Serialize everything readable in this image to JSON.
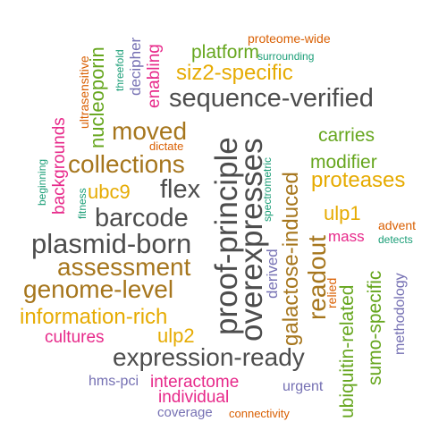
{
  "cloud": {
    "words": [
      {
        "text": "sequence-verified",
        "color": "#4d4d4d",
        "vertical": false
      },
      {
        "text": "proof-principle",
        "color": "#4d4d4d",
        "vertical": true
      },
      {
        "text": "overexpresses",
        "color": "#4d4d4d",
        "vertical": true
      },
      {
        "text": "expression-ready",
        "color": "#4d4d4d",
        "vertical": false
      },
      {
        "text": "plasmid-born",
        "color": "#4d4d4d",
        "vertical": false
      },
      {
        "text": "barcode",
        "color": "#4d4d4d",
        "vertical": false
      },
      {
        "text": "flex",
        "color": "#4d4d4d",
        "vertical": false
      },
      {
        "text": "readout",
        "color": "#a6761d",
        "vertical": true
      },
      {
        "text": "galactose-induced",
        "color": "#a6761d",
        "vertical": true
      },
      {
        "text": "collections",
        "color": "#a6761d",
        "vertical": false
      },
      {
        "text": "assessment",
        "color": "#a6761d",
        "vertical": false
      },
      {
        "text": "genome-level",
        "color": "#a6761d",
        "vertical": false
      },
      {
        "text": "moved",
        "color": "#a6761d",
        "vertical": false
      },
      {
        "text": "information-rich",
        "color": "#e6ab02",
        "vertical": false
      },
      {
        "text": "siz2-specific",
        "color": "#e6ab02",
        "vertical": false
      },
      {
        "text": "proteases",
        "color": "#e6ab02",
        "vertical": false
      },
      {
        "text": "ubc9",
        "color": "#e6ab02",
        "vertical": false
      },
      {
        "text": "ulp1",
        "color": "#e6ab02",
        "vertical": false
      },
      {
        "text": "ulp2",
        "color": "#e6ab02",
        "vertical": false
      },
      {
        "text": "nucleoporin",
        "color": "#66a61e",
        "vertical": true
      },
      {
        "text": "platform",
        "color": "#66a61e",
        "vertical": false
      },
      {
        "text": "carries",
        "color": "#66a61e",
        "vertical": false
      },
      {
        "text": "modifier",
        "color": "#66a61e",
        "vertical": false
      },
      {
        "text": "ubiquitin-related",
        "color": "#66a61e",
        "vertical": true
      },
      {
        "text": "sumo-specific",
        "color": "#66a61e",
        "vertical": true
      },
      {
        "text": "enabling",
        "color": "#e7298a",
        "vertical": true
      },
      {
        "text": "backgrounds",
        "color": "#e7298a",
        "vertical": true
      },
      {
        "text": "cultures",
        "color": "#e7298a",
        "vertical": false
      },
      {
        "text": "interactome",
        "color": "#e7298a",
        "vertical": false
      },
      {
        "text": "individual",
        "color": "#e7298a",
        "vertical": false
      },
      {
        "text": "mass",
        "color": "#e7298a",
        "vertical": false
      },
      {
        "text": "decipher",
        "color": "#7570b3",
        "vertical": true
      },
      {
        "text": "derived",
        "color": "#7570b3",
        "vertical": true
      },
      {
        "text": "methodology",
        "color": "#7570b3",
        "vertical": true
      },
      {
        "text": "hms-pci",
        "color": "#7570b3",
        "vertical": false
      },
      {
        "text": "urgent",
        "color": "#7570b3",
        "vertical": false
      },
      {
        "text": "coverage",
        "color": "#7570b3",
        "vertical": false
      },
      {
        "text": "proteome-wide",
        "color": "#d95f02",
        "vertical": false
      },
      {
        "text": "ultrasensitive",
        "color": "#d95f02",
        "vertical": true
      },
      {
        "text": "dictate",
        "color": "#d95f02",
        "vertical": false
      },
      {
        "text": "advent",
        "color": "#d95f02",
        "vertical": false
      },
      {
        "text": "relied",
        "color": "#d95f02",
        "vertical": true
      },
      {
        "text": "connectivity",
        "color": "#d95f02",
        "vertical": false
      },
      {
        "text": "surrounding",
        "color": "#1b9e77",
        "vertical": false
      },
      {
        "text": "threefold",
        "color": "#1b9e77",
        "vertical": true
      },
      {
        "text": "beginning",
        "color": "#1b9e77",
        "vertical": true
      },
      {
        "text": "fitness",
        "color": "#1b9e77",
        "vertical": true
      },
      {
        "text": "spectrometric",
        "color": "#1b9e77",
        "vertical": true
      },
      {
        "text": "detects",
        "color": "#1b9e77",
        "vertical": false
      }
    ]
  }
}
